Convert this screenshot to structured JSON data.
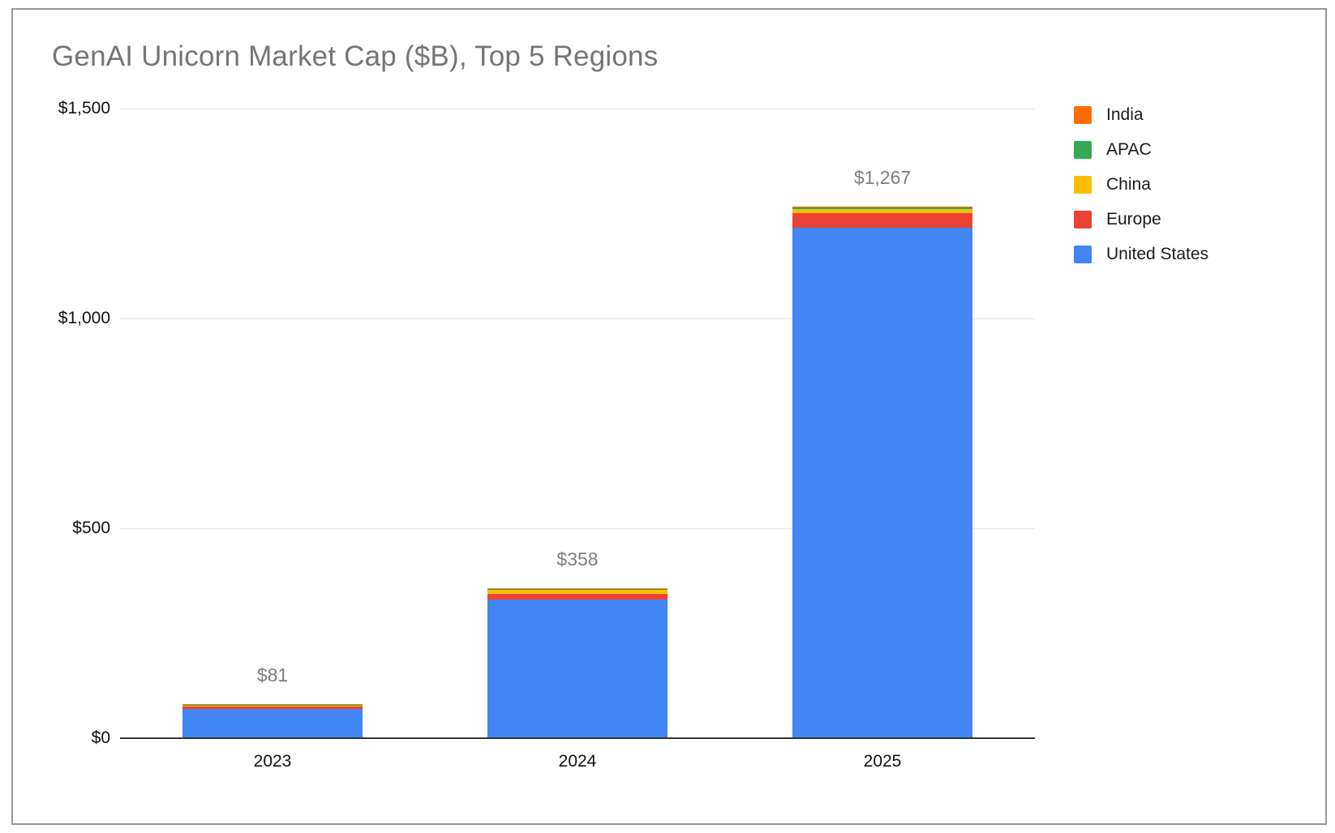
{
  "window": {
    "frame_border_color": "#979797",
    "background": "#ffffff"
  },
  "title": "GenAI Unicorn Market Cap ($B), Top 5 Regions",
  "title_color": "#757575",
  "chart_data": {
    "type": "bar",
    "subtype": "stacked-column",
    "categories": [
      "2023",
      "2024",
      "2025"
    ],
    "series": [
      {
        "name": "India",
        "color": "#FF6D01",
        "values": [
          2.5,
          3,
          2
        ]
      },
      {
        "name": "APAC",
        "color": "#34A853",
        "values": [
          0.5,
          1,
          5
        ]
      },
      {
        "name": "China",
        "color": "#FBBC04",
        "values": [
          3,
          11,
          9
        ]
      },
      {
        "name": "Europe",
        "color": "#EA4335",
        "values": [
          5,
          13,
          35
        ]
      },
      {
        "name": "United States",
        "color": "#4285F4",
        "values": [
          70,
          330,
          1216
        ]
      }
    ],
    "stack_order_bottom_to_top": [
      "United States",
      "Europe",
      "China",
      "APAC",
      "India"
    ],
    "totals": [
      81,
      358,
      1267
    ],
    "total_labels": [
      "$81",
      "$358",
      "$1,267"
    ],
    "total_label_color": "#7d7d7d",
    "y_ticks": [
      {
        "value": 0,
        "label": "$0"
      },
      {
        "value": 500,
        "label": "$500"
      },
      {
        "value": 1000,
        "label": "$1,000"
      },
      {
        "value": 1500,
        "label": "$1,500"
      }
    ],
    "ylim": [
      0,
      1500
    ],
    "xlabel": "",
    "ylabel": "",
    "grid": true,
    "gridline_color": "#e3e3e3",
    "axis_line_color": "#333333",
    "legend_position": "right",
    "legend": [
      "India",
      "APAC",
      "China",
      "Europe",
      "United States"
    ]
  }
}
